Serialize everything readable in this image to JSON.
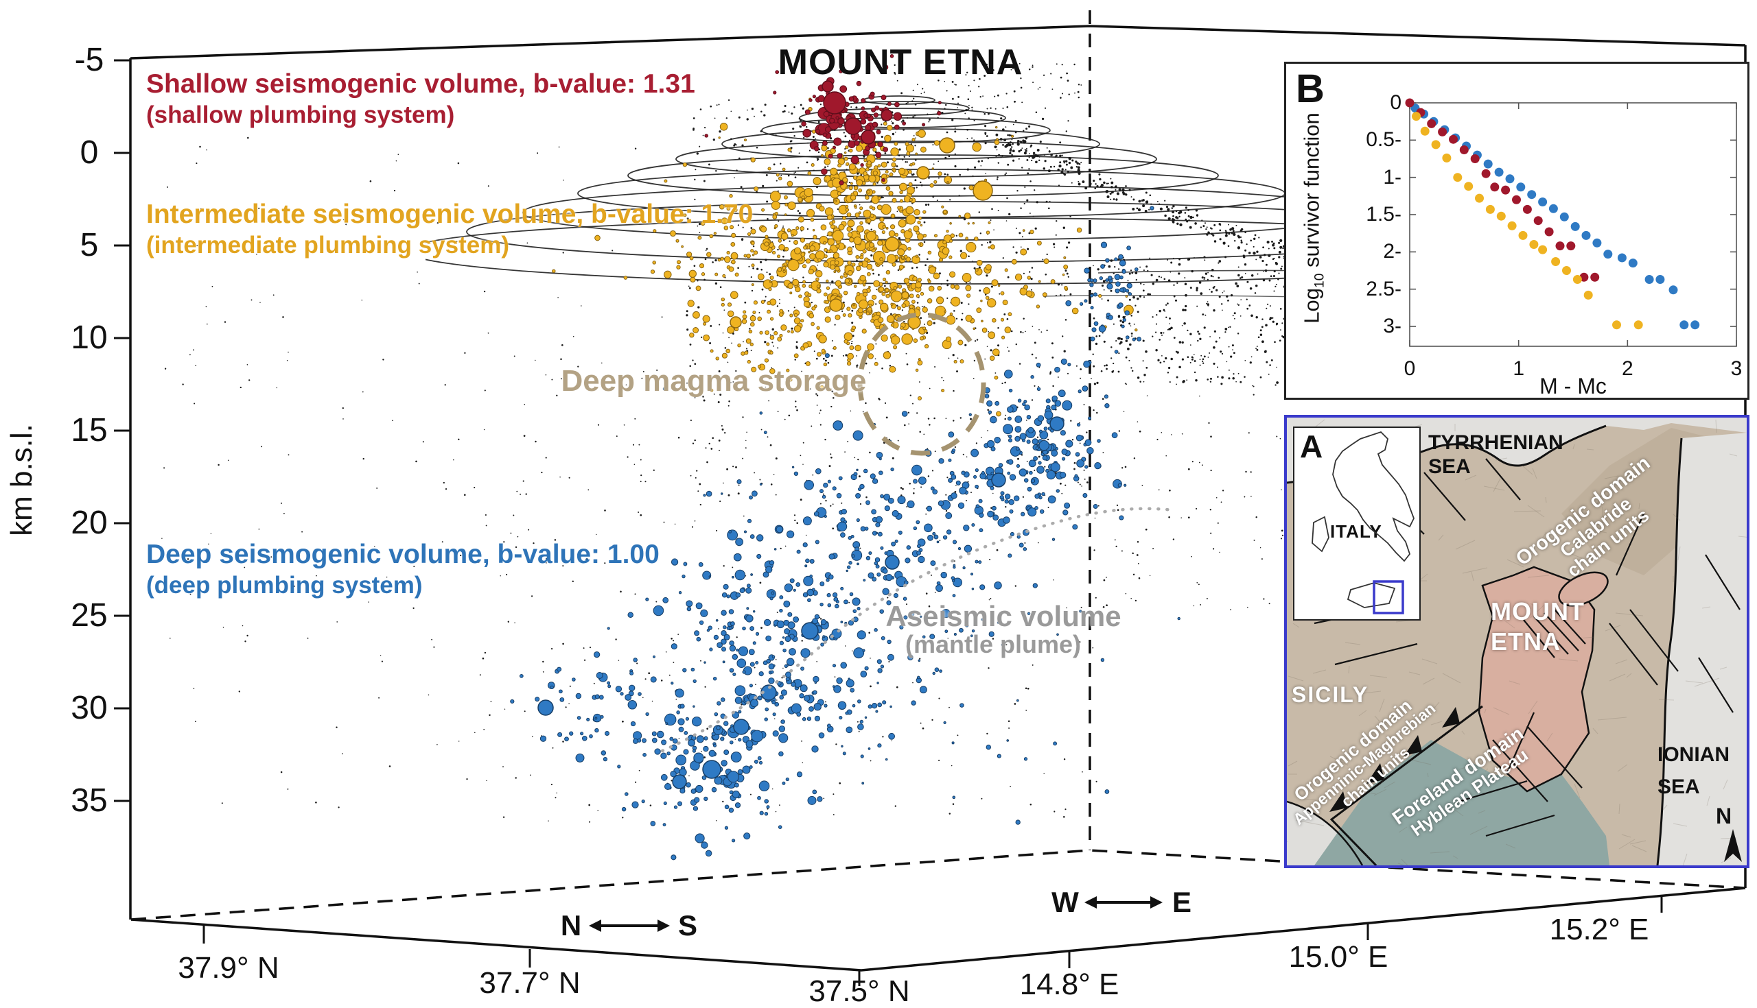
{
  "figure": {
    "title": "MOUNT ETNA"
  },
  "depth_axis": {
    "label": "km b.s.l.",
    "ticks": [
      "-5",
      "0",
      "5",
      "10",
      "15",
      "20",
      "25",
      "30",
      "35"
    ]
  },
  "horizontal_axes": {
    "lat_ticks": [
      "37.9° N",
      "37.7° N",
      "37.5° N"
    ],
    "lon_ticks": [
      "14.8° E",
      "15.0° E",
      "15.2° E"
    ],
    "ns_arrow": {
      "left": "N",
      "right": "S"
    },
    "we_arrow": {
      "left": "W",
      "right": "E"
    }
  },
  "annotations": {
    "shallow": {
      "line1": "Shallow seismogenic volume, b-value: 1.31",
      "line2": "(shallow plumbing system)",
      "color": "#A81E32"
    },
    "intermediate": {
      "line1": "Intermediate seismogenic volume, b-value: 1.70",
      "line2": "(intermediate plumbing system)",
      "color": "#E2A41F"
    },
    "deep": {
      "line1": "Deep seismogenic volume, b-value: 1.00",
      "line2": "(deep plumbing system)",
      "color": "#2E74B8"
    },
    "magma_storage": {
      "label": "Deep magma storage",
      "color": "#B3A284"
    },
    "aseismic": {
      "line1": "Aseismic volume",
      "line2": "(mantle plume)",
      "color": "#9A9A9A"
    }
  },
  "panel_b": {
    "label": "B",
    "ylabel_pre": "Log",
    "ylabel_sub": "10",
    "ylabel_post": " survivor function",
    "xlabel": "M - Mc",
    "xticks": [
      "0",
      "1",
      "2",
      "3"
    ],
    "yticks": [
      "0",
      "-0.5",
      "-1",
      "-1.5",
      "-2",
      "-2.5",
      "-3"
    ]
  },
  "panel_a": {
    "label": "A",
    "inset_country": "ITALY",
    "sea_north": {
      "line1": "TYRRHENIAN",
      "line2": "SEA"
    },
    "sea_east": {
      "line1": "IONIAN",
      "line2": "SEA"
    },
    "island": "SICILY",
    "volcano": {
      "line1": "MOUNT",
      "line2": "ETNA"
    },
    "calabride": {
      "line1": "Orogenic domain",
      "line2": "Calabride",
      "line3": "chain units"
    },
    "apenninic": {
      "line1": "Orogenic domain",
      "line2": "Appenninic-Maghrebian",
      "line3": "chain units"
    },
    "foreland": {
      "line1": "Foreland domain",
      "line2": "Hyblean Plateau"
    },
    "north": "N"
  },
  "chart_data": [
    {
      "type": "scatter",
      "panel": "B",
      "xlabel": "M - Mc",
      "ylabel": "Log10 survivor function",
      "xlim": [
        0,
        3
      ],
      "ylim": [
        -3.3,
        0
      ],
      "legend_position": "none",
      "grid": false,
      "series": [
        {
          "name": "shallow volume (b-value 1.31)",
          "color": "#A0182C",
          "points": [
            [
              0.0,
              0.0
            ],
            [
              0.1,
              -0.13
            ],
            [
              0.2,
              -0.28
            ],
            [
              0.3,
              -0.39
            ],
            [
              0.4,
              -0.49
            ],
            [
              0.5,
              -0.63
            ],
            [
              0.6,
              -0.75
            ],
            [
              0.7,
              -0.95
            ],
            [
              0.78,
              -1.13
            ],
            [
              0.88,
              -1.17
            ],
            [
              0.98,
              -1.3
            ],
            [
              1.08,
              -1.43
            ],
            [
              1.18,
              -1.58
            ],
            [
              1.28,
              -1.73
            ],
            [
              1.38,
              -1.92
            ],
            [
              1.48,
              -1.92
            ],
            [
              1.6,
              -2.34
            ],
            [
              1.7,
              -2.34
            ]
          ]
        },
        {
          "name": "intermediate volume (b-value 1.70)",
          "color": "#EFB321",
          "points": [
            [
              0.06,
              -0.18
            ],
            [
              0.14,
              -0.38
            ],
            [
              0.24,
              -0.56
            ],
            [
              0.34,
              -0.74
            ],
            [
              0.44,
              -1.0
            ],
            [
              0.54,
              -1.12
            ],
            [
              0.64,
              -1.28
            ],
            [
              0.74,
              -1.43
            ],
            [
              0.84,
              -1.52
            ],
            [
              0.94,
              -1.65
            ],
            [
              1.04,
              -1.78
            ],
            [
              1.14,
              -1.9
            ],
            [
              1.22,
              -1.97
            ],
            [
              1.34,
              -2.13
            ],
            [
              1.44,
              -2.25
            ],
            [
              1.54,
              -2.37
            ],
            [
              1.64,
              -2.58
            ],
            [
              1.9,
              -2.98
            ],
            [
              2.1,
              -2.98
            ]
          ]
        },
        {
          "name": "deep volume (b-value 1.00)",
          "color": "#2F7AC4",
          "points": [
            [
              0.05,
              -0.07
            ],
            [
              0.13,
              -0.15
            ],
            [
              0.22,
              -0.25
            ],
            [
              0.32,
              -0.36
            ],
            [
              0.42,
              -0.47
            ],
            [
              0.52,
              -0.58
            ],
            [
              0.62,
              -0.7
            ],
            [
              0.72,
              -0.82
            ],
            [
              0.82,
              -0.93
            ],
            [
              0.92,
              -1.02
            ],
            [
              1.02,
              -1.13
            ],
            [
              1.12,
              -1.23
            ],
            [
              1.22,
              -1.33
            ],
            [
              1.32,
              -1.42
            ],
            [
              1.42,
              -1.53
            ],
            [
              1.52,
              -1.66
            ],
            [
              1.62,
              -1.78
            ],
            [
              1.72,
              -1.88
            ],
            [
              1.82,
              -2.03
            ],
            [
              1.95,
              -2.08
            ],
            [
              2.05,
              -2.15
            ],
            [
              2.2,
              -2.37
            ],
            [
              2.3,
              -2.37
            ],
            [
              2.42,
              -2.51
            ],
            [
              2.52,
              -2.98
            ],
            [
              2.62,
              -2.98
            ]
          ]
        }
      ]
    },
    {
      "type": "scatter",
      "panel": "main-3d",
      "description": "3D earthquake hypocenter distribution beneath Mount Etna, depth -5 to 35 km b.s.l., 37.5-37.9 N, 14.8-15.2 E",
      "depth_ticks_km": [
        -5,
        0,
        5,
        10,
        15,
        20,
        25,
        30,
        35
      ],
      "volumes": [
        {
          "name": "Shallow seismogenic volume (shallow plumbing system)",
          "b_value": 1.31,
          "color": "#A0182C",
          "approx_depth_km": [
            -3,
            0
          ]
        },
        {
          "name": "Intermediate seismogenic volume (intermediate plumbing system)",
          "b_value": 1.7,
          "color": "#EFB321",
          "approx_depth_km": [
            0,
            8
          ]
        },
        {
          "name": "Deep seismogenic volume (deep plumbing system)",
          "b_value": 1.0,
          "color": "#2F7AC4",
          "approx_depth_km": [
            12,
            31
          ]
        },
        {
          "name": "Deep magma storage",
          "b_value": null,
          "color": "#B3A284",
          "approx_depth_km": [
            8,
            12
          ]
        },
        {
          "name": "Aseismic volume (mantle plume)",
          "b_value": null,
          "color": "#9A9A9A",
          "approx_depth_km": [
            20,
            35
          ]
        }
      ]
    }
  ]
}
